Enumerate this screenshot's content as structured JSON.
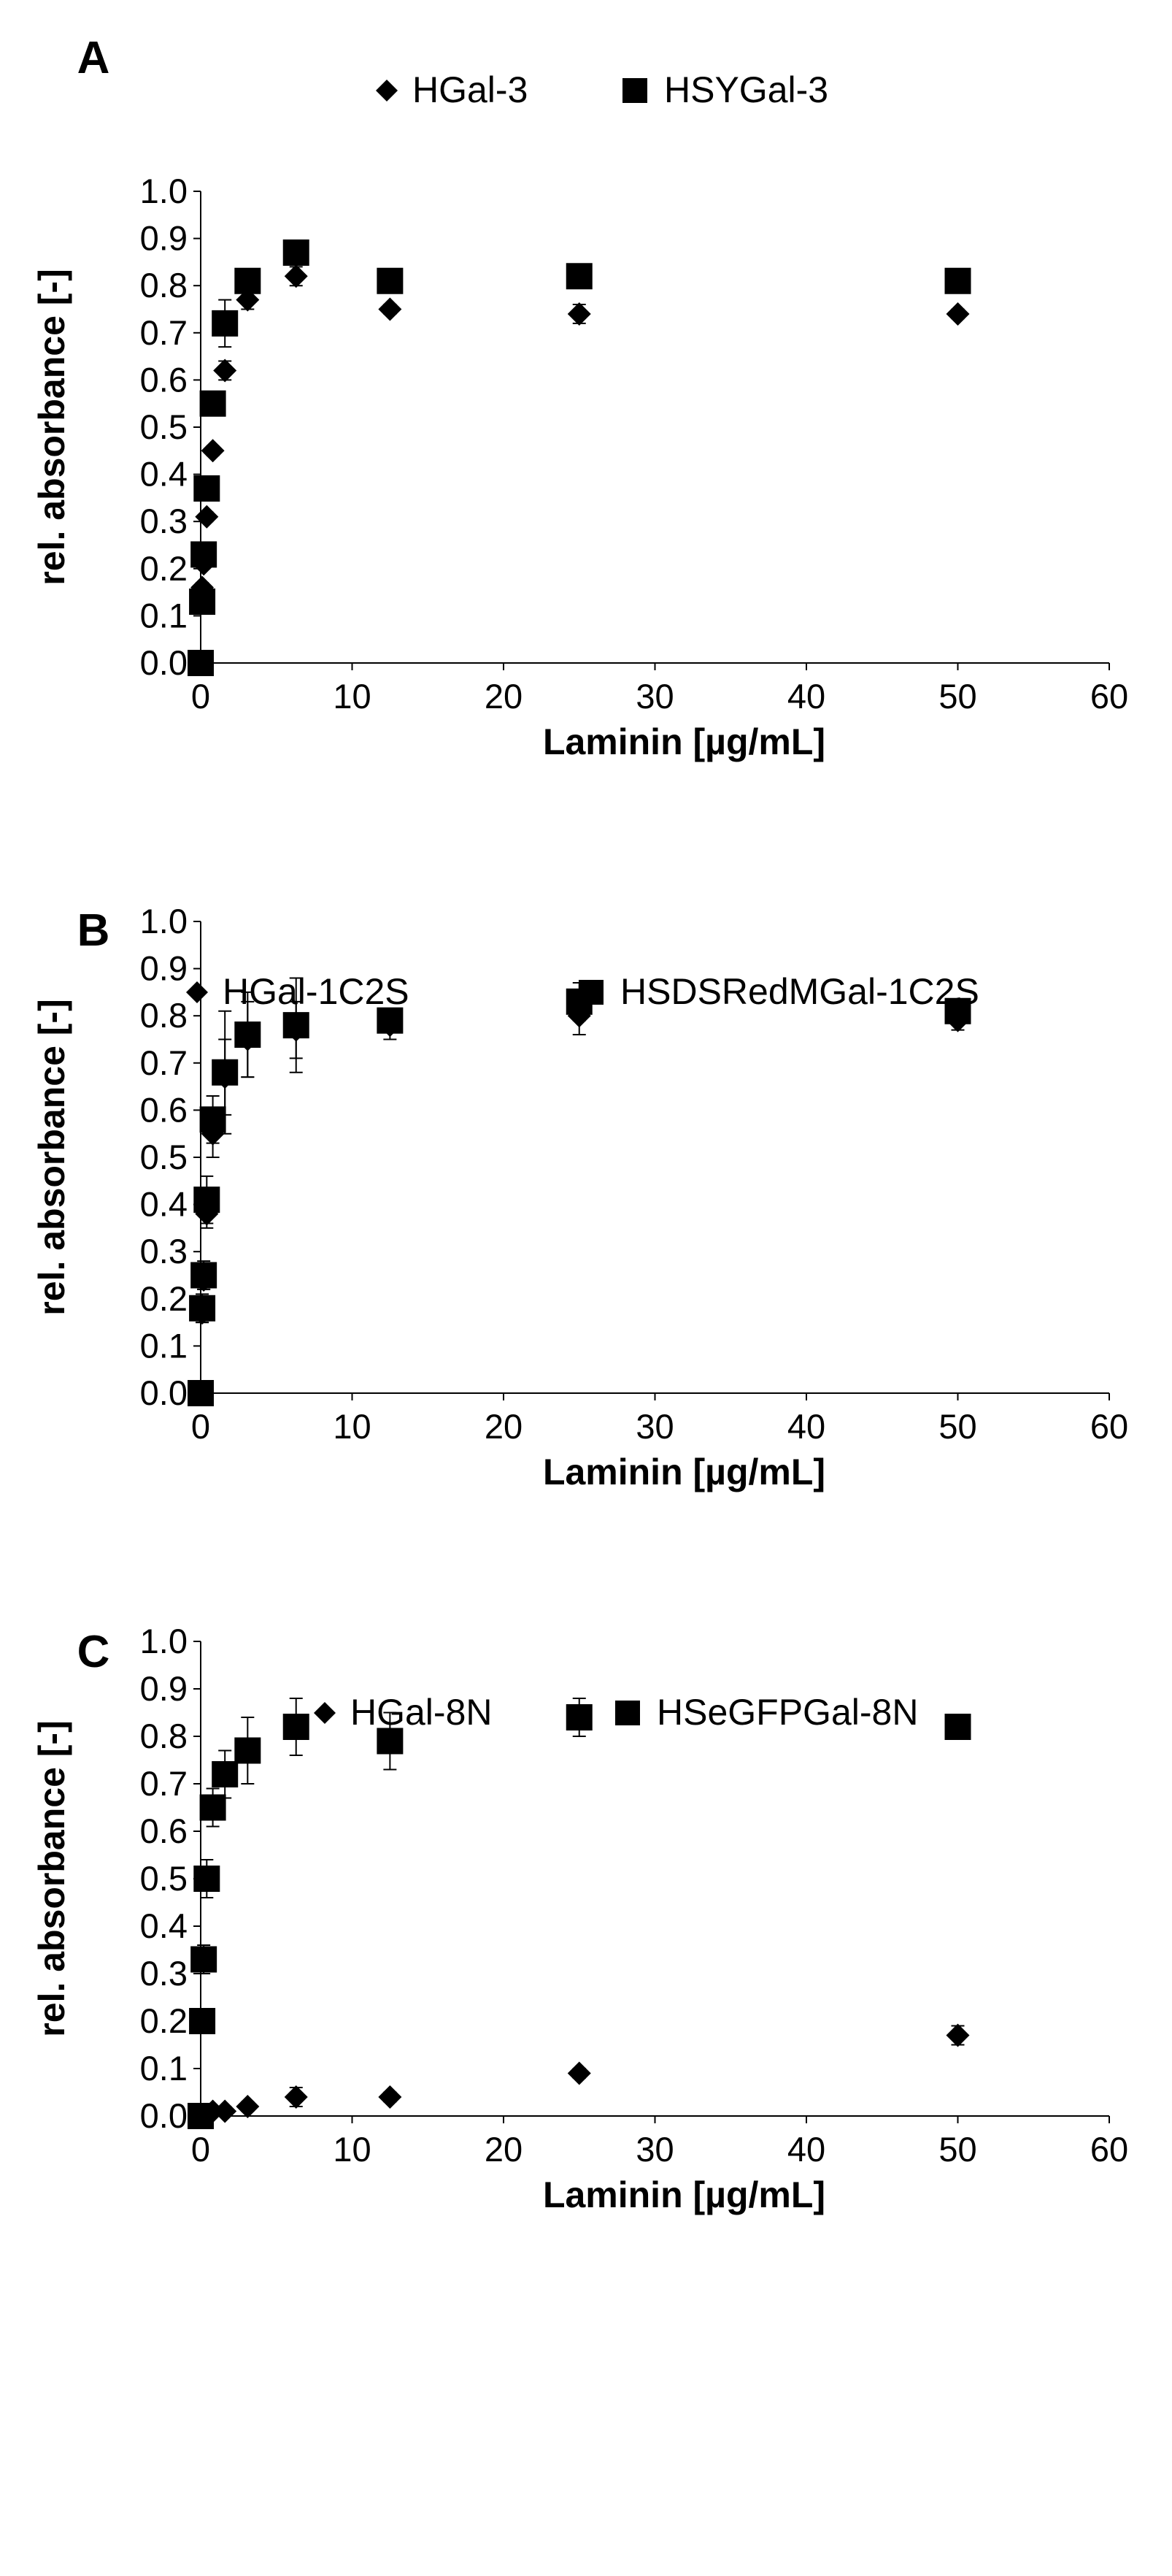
{
  "chart_data": [
    {
      "type": "scatter",
      "panel_label": "A",
      "xlabel": "Laminin   [µg/mL]",
      "ylabel": "rel. absorbance   [-]",
      "xlim": [
        0,
        60
      ],
      "ylim": [
        0.0,
        1.0
      ],
      "x_ticks": [
        "0",
        "10",
        "20",
        "30",
        "40",
        "50",
        "60"
      ],
      "y_ticks": [
        "0.0",
        "0.1",
        "0.2",
        "0.3",
        "0.4",
        "0.5",
        "0.6",
        "0.7",
        "0.8",
        "0.9",
        "1.0"
      ],
      "legend_position": "top",
      "grid": false,
      "series": [
        {
          "name": "HGal-3",
          "marker": "diamond",
          "points": [
            {
              "x": 0.0,
              "y": 0.0,
              "err": 0.0
            },
            {
              "x": 0.1,
              "y": 0.16,
              "err": 0.01
            },
            {
              "x": 0.2,
              "y": 0.21,
              "err": 0.01
            },
            {
              "x": 0.4,
              "y": 0.31,
              "err": 0.01
            },
            {
              "x": 0.8,
              "y": 0.45,
              "err": 0.01
            },
            {
              "x": 1.6,
              "y": 0.62,
              "err": 0.02
            },
            {
              "x": 3.1,
              "y": 0.77,
              "err": 0.02
            },
            {
              "x": 6.3,
              "y": 0.82,
              "err": 0.02
            },
            {
              "x": 12.5,
              "y": 0.75,
              "err": 0.01
            },
            {
              "x": 25.0,
              "y": 0.74,
              "err": 0.02
            },
            {
              "x": 50.0,
              "y": 0.74,
              "err": 0.01
            }
          ]
        },
        {
          "name": "HSYGal-3",
          "marker": "square",
          "points": [
            {
              "x": 0.0,
              "y": 0.0,
              "err": 0.0
            },
            {
              "x": 0.1,
              "y": 0.13,
              "err": 0.01
            },
            {
              "x": 0.2,
              "y": 0.23,
              "err": 0.01
            },
            {
              "x": 0.4,
              "y": 0.37,
              "err": 0.01
            },
            {
              "x": 0.8,
              "y": 0.55,
              "err": 0.02
            },
            {
              "x": 1.6,
              "y": 0.72,
              "err": 0.05
            },
            {
              "x": 3.1,
              "y": 0.81,
              "err": 0.02
            },
            {
              "x": 6.3,
              "y": 0.87,
              "err": 0.02
            },
            {
              "x": 12.5,
              "y": 0.81,
              "err": 0.01
            },
            {
              "x": 25.0,
              "y": 0.82,
              "err": 0.01
            },
            {
              "x": 50.0,
              "y": 0.81,
              "err": 0.01
            }
          ]
        }
      ]
    },
    {
      "type": "scatter",
      "panel_label": "B",
      "xlabel": "Laminin   [µg/mL]",
      "ylabel": "rel. absorbance   [-]",
      "xlim": [
        0,
        60
      ],
      "ylim": [
        0.0,
        1.0
      ],
      "x_ticks": [
        "0",
        "10",
        "20",
        "30",
        "40",
        "50",
        "60"
      ],
      "y_ticks": [
        "0.0",
        "0.1",
        "0.2",
        "0.3",
        "0.4",
        "0.5",
        "0.6",
        "0.7",
        "0.8",
        "0.9",
        "1.0"
      ],
      "legend_position": "top",
      "grid": false,
      "series": [
        {
          "name": "HGal-1C2S",
          "marker": "diamond",
          "points": [
            {
              "x": 0.0,
              "y": 0.0,
              "err": 0.0
            },
            {
              "x": 0.1,
              "y": 0.17,
              "err": 0.02
            },
            {
              "x": 0.2,
              "y": 0.24,
              "err": 0.02
            },
            {
              "x": 0.4,
              "y": 0.38,
              "err": 0.03
            },
            {
              "x": 0.8,
              "y": 0.55,
              "err": 0.05
            },
            {
              "x": 1.6,
              "y": 0.67,
              "err": 0.08
            },
            {
              "x": 3.1,
              "y": 0.75,
              "err": 0.08
            },
            {
              "x": 6.3,
              "y": 0.77,
              "err": 0.06
            },
            {
              "x": 12.5,
              "y": 0.78,
              "err": 0.03
            },
            {
              "x": 25.0,
              "y": 0.8,
              "err": 0.04
            },
            {
              "x": 50.0,
              "y": 0.79,
              "err": 0.02
            }
          ]
        },
        {
          "name": "HSDSRedMGal-1C2S",
          "marker": "square",
          "points": [
            {
              "x": 0.0,
              "y": 0.0,
              "err": 0.0
            },
            {
              "x": 0.1,
              "y": 0.18,
              "err": 0.03
            },
            {
              "x": 0.2,
              "y": 0.25,
              "err": 0.03
            },
            {
              "x": 0.4,
              "y": 0.41,
              "err": 0.05
            },
            {
              "x": 0.8,
              "y": 0.58,
              "err": 0.05
            },
            {
              "x": 1.6,
              "y": 0.68,
              "err": 0.13
            },
            {
              "x": 3.1,
              "y": 0.76,
              "err": 0.09
            },
            {
              "x": 6.3,
              "y": 0.78,
              "err": 0.1
            },
            {
              "x": 12.5,
              "y": 0.79,
              "err": 0.02
            },
            {
              "x": 25.0,
              "y": 0.83,
              "err": 0.04
            },
            {
              "x": 50.0,
              "y": 0.81,
              "err": 0.02
            }
          ]
        }
      ]
    },
    {
      "type": "scatter",
      "panel_label": "C",
      "xlabel": "Laminin   [µg/mL]",
      "ylabel": "rel. absorbance   [-]",
      "xlim": [
        0,
        60
      ],
      "ylim": [
        0.0,
        1.0
      ],
      "x_ticks": [
        "0",
        "10",
        "20",
        "30",
        "40",
        "50",
        "60"
      ],
      "y_ticks": [
        "0.0",
        "0.1",
        "0.2",
        "0.3",
        "0.4",
        "0.5",
        "0.6",
        "0.7",
        "0.8",
        "0.9",
        "1.0"
      ],
      "legend_position": "top",
      "grid": false,
      "series": [
        {
          "name": "HGal-8N",
          "marker": "diamond",
          "points": [
            {
              "x": 0.0,
              "y": 0.0,
              "err": 0.0
            },
            {
              "x": 0.1,
              "y": 0.0,
              "err": 0.01
            },
            {
              "x": 0.2,
              "y": 0.0,
              "err": 0.01
            },
            {
              "x": 0.4,
              "y": 0.0,
              "err": 0.01
            },
            {
              "x": 0.8,
              "y": 0.01,
              "err": 0.01
            },
            {
              "x": 1.6,
              "y": 0.01,
              "err": 0.01
            },
            {
              "x": 3.1,
              "y": 0.02,
              "err": 0.01
            },
            {
              "x": 6.3,
              "y": 0.04,
              "err": 0.02
            },
            {
              "x": 12.5,
              "y": 0.04,
              "err": 0.01
            },
            {
              "x": 25.0,
              "y": 0.09,
              "err": 0.01
            },
            {
              "x": 50.0,
              "y": 0.17,
              "err": 0.02
            }
          ]
        },
        {
          "name": "HSeGFPGal-8N",
          "marker": "square",
          "points": [
            {
              "x": 0.0,
              "y": 0.0,
              "err": 0.0
            },
            {
              "x": 0.1,
              "y": 0.2,
              "err": 0.02
            },
            {
              "x": 0.2,
              "y": 0.33,
              "err": 0.03
            },
            {
              "x": 0.4,
              "y": 0.5,
              "err": 0.04
            },
            {
              "x": 0.8,
              "y": 0.65,
              "err": 0.04
            },
            {
              "x": 1.6,
              "y": 0.72,
              "err": 0.05
            },
            {
              "x": 3.1,
              "y": 0.77,
              "err": 0.07
            },
            {
              "x": 6.3,
              "y": 0.82,
              "err": 0.06
            },
            {
              "x": 12.5,
              "y": 0.79,
              "err": 0.06
            },
            {
              "x": 25.0,
              "y": 0.84,
              "err": 0.04
            },
            {
              "x": 50.0,
              "y": 0.82,
              "err": 0.01
            }
          ]
        }
      ]
    }
  ]
}
